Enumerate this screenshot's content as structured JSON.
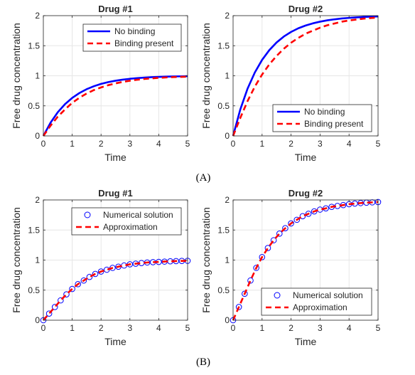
{
  "chart_data": [
    {
      "type": "line",
      "panel": "A",
      "title": "Drug #1",
      "xlabel": "Time",
      "ylabel": "Free drug concentration",
      "xlim": [
        0,
        5
      ],
      "ylim": [
        0,
        2
      ],
      "xticks": [
        "0",
        "1",
        "2",
        "3",
        "4",
        "5"
      ],
      "yticks": [
        "0",
        "0.5",
        "1",
        "1.5",
        "2"
      ],
      "grid": true,
      "legend_position": "top-right",
      "x": [
        0,
        0.25,
        0.5,
        0.75,
        1,
        1.25,
        1.5,
        1.75,
        2,
        2.25,
        2.5,
        2.75,
        3,
        3.25,
        3.5,
        3.75,
        4,
        4.25,
        4.5,
        4.75,
        5
      ],
      "series": [
        {
          "name": "No binding",
          "style": "solid",
          "color": "#0000ff",
          "values": [
            0,
            0.221,
            0.393,
            0.528,
            0.632,
            0.713,
            0.777,
            0.826,
            0.865,
            0.895,
            0.918,
            0.936,
            0.95,
            0.961,
            0.97,
            0.977,
            0.982,
            0.986,
            0.989,
            0.991,
            0.993
          ]
        },
        {
          "name": "Binding present",
          "style": "dashed",
          "color": "#ff0000",
          "values": [
            0,
            0.17,
            0.32,
            0.44,
            0.55,
            0.635,
            0.705,
            0.762,
            0.806,
            0.844,
            0.873,
            0.898,
            0.918,
            0.934,
            0.947,
            0.957,
            0.966,
            0.972,
            0.978,
            0.982,
            0.985
          ]
        }
      ]
    },
    {
      "type": "line",
      "panel": "A",
      "title": "Drug #2",
      "xlabel": "Time",
      "ylabel": "Free drug concentration",
      "xlim": [
        0,
        5
      ],
      "ylim": [
        0,
        2
      ],
      "xticks": [
        "0",
        "1",
        "2",
        "3",
        "4",
        "5"
      ],
      "yticks": [
        "0",
        "0.5",
        "1",
        "1.5",
        "2"
      ],
      "grid": true,
      "legend_position": "bottom-right",
      "x": [
        0,
        0.25,
        0.5,
        0.75,
        1,
        1.25,
        1.5,
        1.75,
        2,
        2.25,
        2.5,
        2.75,
        3,
        3.25,
        3.5,
        3.75,
        4,
        4.25,
        4.5,
        4.75,
        5
      ],
      "series": [
        {
          "name": "No binding",
          "style": "solid",
          "color": "#0000ff",
          "values": [
            0,
            0.442,
            0.787,
            1.055,
            1.264,
            1.427,
            1.554,
            1.653,
            1.729,
            1.79,
            1.836,
            1.872,
            1.9,
            1.922,
            1.939,
            1.953,
            1.963,
            1.971,
            1.978,
            1.983,
            1.987
          ]
        },
        {
          "name": "Binding present",
          "style": "dashed",
          "color": "#ff0000",
          "values": [
            0,
            0.3,
            0.58,
            0.82,
            1.02,
            1.19,
            1.33,
            1.45,
            1.55,
            1.63,
            1.7,
            1.75,
            1.8,
            1.84,
            1.87,
            1.9,
            1.92,
            1.935,
            1.95,
            1.96,
            1.97
          ]
        }
      ]
    },
    {
      "type": "line",
      "panel": "B",
      "title": "Drug #1",
      "xlabel": "Time",
      "ylabel": "Free drug concentration",
      "xlim": [
        0,
        5
      ],
      "ylim": [
        0,
        2
      ],
      "xticks": [
        "0",
        "1",
        "2",
        "3",
        "4",
        "5"
      ],
      "yticks": [
        "0",
        "0.5",
        "1",
        "1.5",
        "2"
      ],
      "grid": true,
      "legend_position": "top-right",
      "x": [
        0,
        0.2,
        0.4,
        0.6,
        0.8,
        1,
        1.2,
        1.4,
        1.6,
        1.8,
        2,
        2.2,
        2.4,
        2.6,
        2.8,
        3,
        3.2,
        3.4,
        3.6,
        3.8,
        4,
        4.2,
        4.4,
        4.6,
        4.8,
        5
      ],
      "series": [
        {
          "name": "Numerical solution",
          "style": "markers",
          "color": "#0000ff",
          "values": [
            0,
            0.11,
            0.22,
            0.33,
            0.43,
            0.52,
            0.6,
            0.66,
            0.72,
            0.77,
            0.81,
            0.84,
            0.87,
            0.89,
            0.91,
            0.93,
            0.94,
            0.95,
            0.96,
            0.965,
            0.97,
            0.975,
            0.98,
            0.983,
            0.986,
            0.988
          ]
        },
        {
          "name": "Approximation",
          "style": "dashed",
          "color": "#ff0000",
          "values": [
            0,
            0.11,
            0.22,
            0.33,
            0.43,
            0.52,
            0.6,
            0.66,
            0.72,
            0.77,
            0.81,
            0.84,
            0.87,
            0.89,
            0.91,
            0.93,
            0.94,
            0.95,
            0.96,
            0.965,
            0.97,
            0.975,
            0.98,
            0.983,
            0.986,
            0.988
          ]
        }
      ]
    },
    {
      "type": "line",
      "panel": "B",
      "title": "Drug #2",
      "xlabel": "Time",
      "ylabel": "Free drug concentration",
      "xlim": [
        0,
        5
      ],
      "ylim": [
        0,
        2
      ],
      "xticks": [
        "0",
        "1",
        "2",
        "3",
        "4",
        "5"
      ],
      "yticks": [
        "0",
        "0.5",
        "1",
        "1.5",
        "2"
      ],
      "grid": true,
      "legend_position": "bottom-right",
      "x": [
        0,
        0.2,
        0.4,
        0.6,
        0.8,
        1,
        1.2,
        1.4,
        1.6,
        1.8,
        2,
        2.2,
        2.4,
        2.6,
        2.8,
        3,
        3.2,
        3.4,
        3.6,
        3.8,
        4,
        4.2,
        4.4,
        4.6,
        4.8,
        5
      ],
      "series": [
        {
          "name": "Numerical solution",
          "style": "markers",
          "color": "#0000ff",
          "values": [
            0,
            0.22,
            0.44,
            0.66,
            0.87,
            1.05,
            1.2,
            1.33,
            1.44,
            1.53,
            1.61,
            1.67,
            1.73,
            1.77,
            1.81,
            1.84,
            1.86,
            1.885,
            1.9,
            1.915,
            1.93,
            1.94,
            1.948,
            1.955,
            1.96,
            1.965
          ]
        },
        {
          "name": "Approximation",
          "style": "dashed",
          "color": "#ff0000",
          "values": [
            0,
            0.22,
            0.44,
            0.66,
            0.87,
            1.05,
            1.2,
            1.33,
            1.44,
            1.53,
            1.61,
            1.67,
            1.73,
            1.77,
            1.81,
            1.84,
            1.86,
            1.885,
            1.9,
            1.915,
            1.93,
            1.94,
            1.948,
            1.955,
            1.96,
            1.965
          ]
        }
      ]
    }
  ],
  "panel_labels": [
    "(A)",
    "(B)"
  ]
}
